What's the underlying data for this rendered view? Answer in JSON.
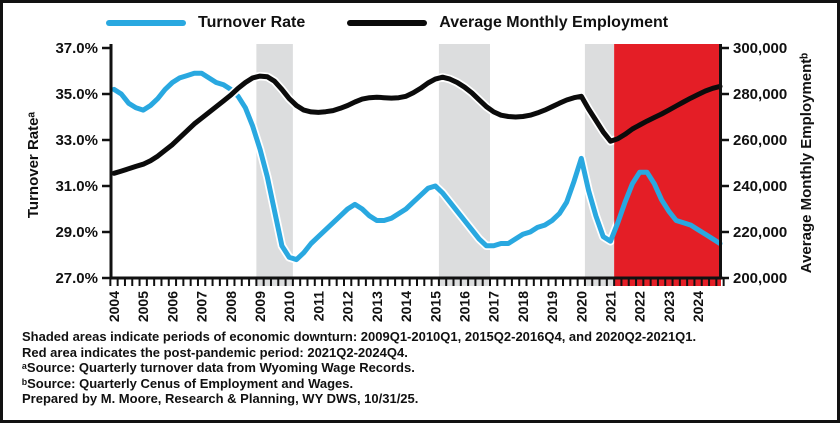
{
  "legend": {
    "items": [
      {
        "label": "Turnover Rate",
        "color": "#29A8E0"
      },
      {
        "label": "Average Monthly Employment",
        "color": "#0B0B0B"
      }
    ]
  },
  "chart_data": {
    "type": "line",
    "x_frequency": "quarterly",
    "x_start": "2004Q1",
    "x_end": "2024Q4",
    "x_start_year": 2004,
    "x_tick_years": [
      2004,
      2005,
      2006,
      2007,
      2008,
      2009,
      2010,
      2011,
      2012,
      2013,
      2014,
      2015,
      2016,
      2017,
      2018,
      2019,
      2020,
      2021,
      2022,
      2023,
      2024
    ],
    "left_axis": {
      "title": "Turnover Rateᵃ",
      "min": 27,
      "max": 37,
      "tick_step": 2,
      "format": "percent"
    },
    "right_axis": {
      "title": "Average Monthly Employmentᵇ",
      "min": 200000,
      "max": 300000,
      "tick_step": 20000,
      "format": "number"
    },
    "grid": false,
    "legend_position": "top",
    "series": [
      {
        "name": "Turnover Rate",
        "axis": "left",
        "color": "#29A8E0",
        "values": [
          35.2,
          35.0,
          34.6,
          34.4,
          34.3,
          34.5,
          34.8,
          35.2,
          35.5,
          35.7,
          35.8,
          35.9,
          35.9,
          35.7,
          35.5,
          35.4,
          35.2,
          34.9,
          34.4,
          33.6,
          32.6,
          31.4,
          29.9,
          28.4,
          27.9,
          27.8,
          28.1,
          28.5,
          28.8,
          29.1,
          29.4,
          29.7,
          30.0,
          30.2,
          30.0,
          29.7,
          29.5,
          29.5,
          29.6,
          29.8,
          30.0,
          30.3,
          30.6,
          30.9,
          31.0,
          30.7,
          30.3,
          29.9,
          29.5,
          29.1,
          28.7,
          28.4,
          28.4,
          28.5,
          28.5,
          28.7,
          28.9,
          29.0,
          29.2,
          29.3,
          29.5,
          29.8,
          30.3,
          31.2,
          32.2,
          30.8,
          29.7,
          28.8,
          28.6,
          29.4,
          30.3,
          31.1,
          31.6,
          31.6,
          31.1,
          30.4,
          29.9,
          29.5,
          29.4,
          29.3,
          29.1,
          28.9,
          28.7,
          28.5
        ]
      },
      {
        "name": "Average Monthly Employment",
        "axis": "right",
        "color": "#0B0B0B",
        "values": [
          245500,
          246500,
          247500,
          248500,
          249500,
          251000,
          253000,
          255500,
          258000,
          261000,
          264000,
          267000,
          269500,
          272000,
          274500,
          277000,
          279500,
          282500,
          285000,
          287000,
          287800,
          287500,
          285500,
          282000,
          278000,
          275000,
          273000,
          272200,
          272000,
          272300,
          272800,
          273800,
          275000,
          276500,
          277800,
          278400,
          278600,
          278400,
          278200,
          278400,
          279000,
          280500,
          282500,
          284800,
          286500,
          287300,
          286500,
          285000,
          283000,
          280500,
          277500,
          274500,
          272200,
          270800,
          270200,
          270000,
          270200,
          270800,
          271800,
          273000,
          274500,
          276000,
          277400,
          278400,
          279000,
          273500,
          268500,
          263500,
          259500,
          260500,
          262500,
          264800,
          266500,
          268200,
          269800,
          271300,
          273000,
          274800,
          276500,
          278200,
          279800,
          281300,
          282500,
          283300
        ]
      }
    ],
    "regions": [
      {
        "kind": "economic-downturn",
        "from": "2009Q1",
        "to": "2010Q1",
        "color": "#DCDDDE"
      },
      {
        "kind": "economic-downturn",
        "from": "2015Q2",
        "to": "2016Q4",
        "color": "#DCDDDE"
      },
      {
        "kind": "economic-downturn",
        "from": "2020Q2",
        "to": "2021Q1",
        "color": "#DCDDDE"
      },
      {
        "kind": "post-pandemic",
        "from": "2021Q2",
        "to": "2024Q4",
        "color": "#E41E26"
      }
    ]
  },
  "footnotes": {
    "lines": [
      "Shaded areas indicate periods of economic downturn: 2009Q1-2010Q1, 2015Q2-2016Q4, and 2020Q2-2021Q1.",
      "Red area indicates the post-pandemic period: 2021Q2-2024Q4.",
      "ᵃSource: Quarterly turnover data from Wyoming Wage Records.",
      "ᵇSource: Quarterly Cenus of Employment and Wages.",
      "Prepared by M. Moore, Research & Planning, WY DWS, 10/31/25."
    ]
  }
}
